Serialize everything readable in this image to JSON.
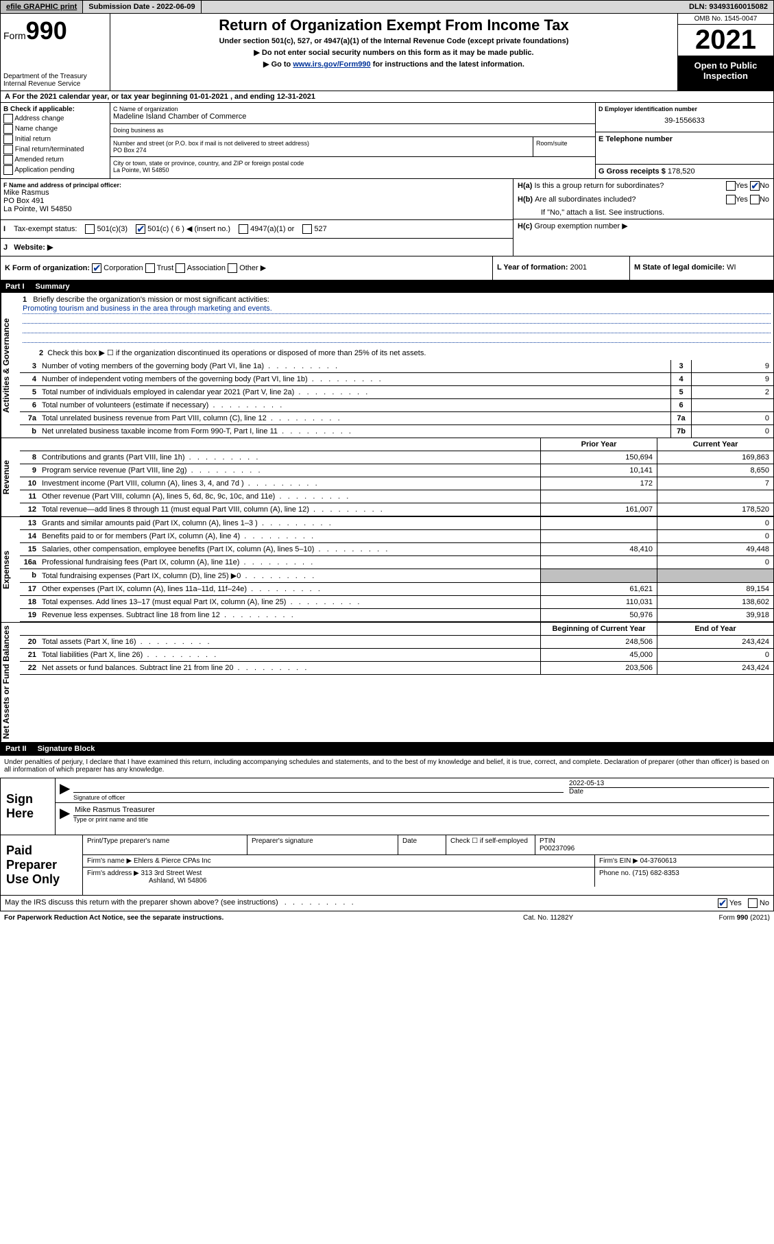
{
  "topbar": {
    "efile": "efile GRAPHIC print",
    "subdate_label": "Submission Date -",
    "subdate": "2022-06-09",
    "dln_label": "DLN:",
    "dln": "93493160015082"
  },
  "header": {
    "form_prefix": "Form",
    "form_num": "990",
    "dept": "Department of the Treasury\nInternal Revenue Service",
    "title": "Return of Organization Exempt From Income Tax",
    "sub1": "Under section 501(c), 527, or 4947(a)(1) of the Internal Revenue Code (except private foundations)",
    "sub2": "▶ Do not enter social security numbers on this form as it may be made public.",
    "sub3_pre": "▶ Go to ",
    "sub3_link": "www.irs.gov/Form990",
    "sub3_post": " for instructions and the latest information.",
    "omb": "OMB No. 1545-0047",
    "year": "2021",
    "open": "Open to Public Inspection"
  },
  "rowA": "For the 2021 calendar year, or tax year beginning 01-01-2021   , and ending 12-31-2021",
  "B": {
    "title": "B Check if applicable:",
    "items": [
      "Address change",
      "Name change",
      "Initial return",
      "Final return/terminated",
      "Amended return",
      "Application pending"
    ]
  },
  "C": {
    "name_lbl": "C Name of organization",
    "name": "Madeline Island Chamber of Commerce",
    "dba_lbl": "Doing business as",
    "addr_lbl": "Number and street (or P.O. box if mail is not delivered to street address)",
    "addr": "PO Box 274",
    "room_lbl": "Room/suite",
    "city_lbl": "City or town, state or province, country, and ZIP or foreign postal code",
    "city": "La Pointe, WI  54850"
  },
  "D": {
    "lbl": "D Employer identification number",
    "val": "39-1556633"
  },
  "E": {
    "lbl": "E Telephone number",
    "val": ""
  },
  "G": {
    "lbl": "G Gross receipts $",
    "val": "178,520"
  },
  "F": {
    "lbl": "F  Name and address of principal officer:",
    "name": "Mike Rasmus",
    "addr1": "PO Box 491",
    "addr2": "La Pointe, WI  54850"
  },
  "H": {
    "a": "Is this a group return for subordinates?",
    "b": "Are all subordinates included?",
    "note": "If \"No,\" attach a list. See instructions.",
    "c": "Group exemption number ▶"
  },
  "I": {
    "lbl": "Tax-exempt status:",
    "opts": [
      "501(c)(3)",
      "501(c) ( 6 ) ◀ (insert no.)",
      "4947(a)(1) or",
      "527"
    ]
  },
  "J": {
    "lbl": "Website: ▶"
  },
  "K": {
    "lbl": "K Form of organization:",
    "opts": [
      "Corporation",
      "Trust",
      "Association",
      "Other ▶"
    ]
  },
  "L": {
    "lbl": "L Year of formation:",
    "val": "2001"
  },
  "M": {
    "lbl": "M State of legal domicile:",
    "val": "WI"
  },
  "part1": {
    "num": "Part I",
    "title": "Summary"
  },
  "mission_lbl": "Briefly describe the organization's mission or most significant activities:",
  "mission": "Promoting tourism and business in the area through marketing and events.",
  "gov": {
    "l2": "Check this box ▶ ☐ if the organization discontinued its operations or disposed of more than 25% of its net assets.",
    "lines": [
      {
        "n": "3",
        "t": "Number of voting members of the governing body (Part VI, line 1a)",
        "b": "3",
        "v": "9"
      },
      {
        "n": "4",
        "t": "Number of independent voting members of the governing body (Part VI, line 1b)",
        "b": "4",
        "v": "9"
      },
      {
        "n": "5",
        "t": "Total number of individuals employed in calendar year 2021 (Part V, line 2a)",
        "b": "5",
        "v": "2"
      },
      {
        "n": "6",
        "t": "Total number of volunteers (estimate if necessary)",
        "b": "6",
        "v": ""
      },
      {
        "n": "7a",
        "t": "Total unrelated business revenue from Part VIII, column (C), line 12",
        "b": "7a",
        "v": "0"
      },
      {
        "n": "b",
        "t": "Net unrelated business taxable income from Form 990-T, Part I, line 11",
        "b": "7b",
        "v": "0"
      }
    ]
  },
  "cols": {
    "prior": "Prior Year",
    "current": "Current Year",
    "boc": "Beginning of Current Year",
    "eoy": "End of Year"
  },
  "revenue": [
    {
      "n": "8",
      "t": "Contributions and grants (Part VIII, line 1h)",
      "v1": "150,694",
      "v2": "169,863"
    },
    {
      "n": "9",
      "t": "Program service revenue (Part VIII, line 2g)",
      "v1": "10,141",
      "v2": "8,650"
    },
    {
      "n": "10",
      "t": "Investment income (Part VIII, column (A), lines 3, 4, and 7d )",
      "v1": "172",
      "v2": "7"
    },
    {
      "n": "11",
      "t": "Other revenue (Part VIII, column (A), lines 5, 6d, 8c, 9c, 10c, and 11e)",
      "v1": "",
      "v2": ""
    },
    {
      "n": "12",
      "t": "Total revenue—add lines 8 through 11 (must equal Part VIII, column (A), line 12)",
      "v1": "161,007",
      "v2": "178,520"
    }
  ],
  "expenses": [
    {
      "n": "13",
      "t": "Grants and similar amounts paid (Part IX, column (A), lines 1–3 )",
      "v1": "",
      "v2": "0"
    },
    {
      "n": "14",
      "t": "Benefits paid to or for members (Part IX, column (A), line 4)",
      "v1": "",
      "v2": "0"
    },
    {
      "n": "15",
      "t": "Salaries, other compensation, employee benefits (Part IX, column (A), lines 5–10)",
      "v1": "48,410",
      "v2": "49,448"
    },
    {
      "n": "16a",
      "t": "Professional fundraising fees (Part IX, column (A), line 11e)",
      "v1": "",
      "v2": "0"
    },
    {
      "n": "b",
      "t": "Total fundraising expenses (Part IX, column (D), line 25) ▶0",
      "v1": "shade",
      "v2": "shade"
    },
    {
      "n": "17",
      "t": "Other expenses (Part IX, column (A), lines 11a–11d, 11f–24e)",
      "v1": "61,621",
      "v2": "89,154"
    },
    {
      "n": "18",
      "t": "Total expenses. Add lines 13–17 (must equal Part IX, column (A), line 25)",
      "v1": "110,031",
      "v2": "138,602"
    },
    {
      "n": "19",
      "t": "Revenue less expenses. Subtract line 18 from line 12",
      "v1": "50,976",
      "v2": "39,918"
    }
  ],
  "netassets": [
    {
      "n": "20",
      "t": "Total assets (Part X, line 16)",
      "v1": "248,506",
      "v2": "243,424"
    },
    {
      "n": "21",
      "t": "Total liabilities (Part X, line 26)",
      "v1": "45,000",
      "v2": "0"
    },
    {
      "n": "22",
      "t": "Net assets or fund balances. Subtract line 21 from line 20",
      "v1": "203,506",
      "v2": "243,424"
    }
  ],
  "part2": {
    "num": "Part II",
    "title": "Signature Block"
  },
  "sig_intro": "Under penalties of perjury, I declare that I have examined this return, including accompanying schedules and statements, and to the best of my knowledge and belief, it is true, correct, and complete. Declaration of preparer (other than officer) is based on all information of which preparer has any knowledge.",
  "sign": {
    "here": "Sign Here",
    "sig_lbl": "Signature of officer",
    "date_lbl": "Date",
    "date": "2022-05-13",
    "name": "Mike Rasmus  Treasurer",
    "name_lbl": "Type or print name and title"
  },
  "prep": {
    "title": "Paid Preparer Use Only",
    "r1": {
      "c1": "Print/Type preparer's name",
      "c2": "Preparer's signature",
      "c3": "Date",
      "c4_lbl": "Check ☐ if self-employed",
      "c5_lbl": "PTIN",
      "c5": "P00237096"
    },
    "r2": {
      "lbl": "Firm's name    ▶",
      "val": "Ehlers & Pierce CPAs Inc",
      "ein_lbl": "Firm's EIN ▶",
      "ein": "04-3760613"
    },
    "r3": {
      "lbl": "Firm's address ▶",
      "val1": "313 3rd Street West",
      "val2": "Ashland, WI  54806",
      "ph_lbl": "Phone no.",
      "ph": "(715) 682-8353"
    }
  },
  "bottom": "May the IRS discuss this return with the preparer shown above? (see instructions)",
  "footer": {
    "l": "For Paperwork Reduction Act Notice, see the separate instructions.",
    "m": "Cat. No. 11282Y",
    "r": "Form 990 (2021)"
  },
  "vtabs": {
    "gov": "Activities & Governance",
    "rev": "Revenue",
    "exp": "Expenses",
    "net": "Net Assets or Fund Balances"
  }
}
